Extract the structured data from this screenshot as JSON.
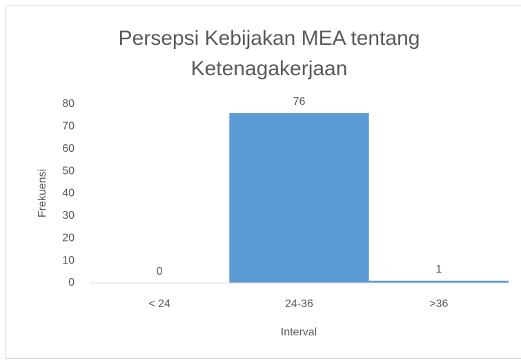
{
  "chart_data": {
    "type": "bar",
    "title": "Persepsi Kebijakan MEA tentang Ketenagakerjaan",
    "categories": [
      "< 24",
      "24-36",
      ">36"
    ],
    "values": [
      0,
      76,
      1
    ],
    "color": "#5b9bd5",
    "x_label": "Interval",
    "y_label": "Frekuensi",
    "ylim": [
      0,
      80
    ],
    "yticks": [
      0,
      10,
      20,
      30,
      40,
      50,
      60,
      70,
      80
    ],
    "grid": false
  }
}
